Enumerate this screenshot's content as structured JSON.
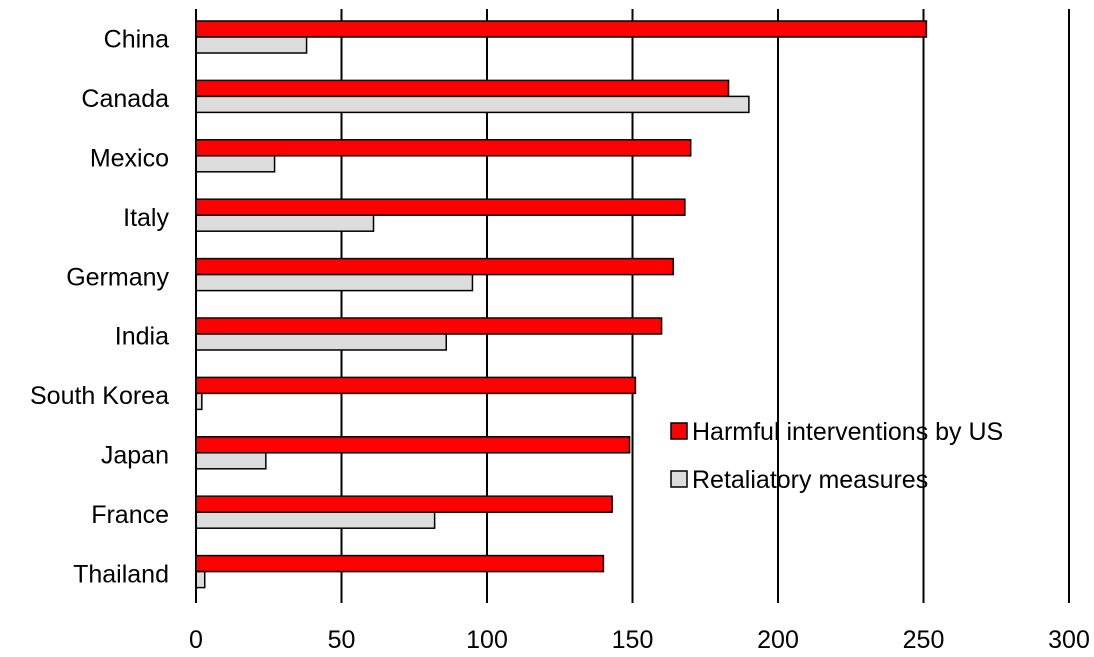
{
  "chart_data": {
    "type": "bar",
    "orientation": "horizontal",
    "title": "",
    "xlabel": "",
    "ylabel": "",
    "categories": [
      "China",
      "Canada",
      "Mexico",
      "Italy",
      "Germany",
      "India",
      "South Korea",
      "Japan",
      "France",
      "Thailand"
    ],
    "series": [
      {
        "name": "Harmful interventions by US",
        "color": "#ff0000",
        "values": [
          251,
          183,
          170,
          168,
          164,
          160,
          151,
          149,
          143,
          140
        ]
      },
      {
        "name": "Retaliatory measures",
        "color": "#dcdcdc",
        "values": [
          38,
          190,
          27,
          61,
          95,
          86,
          2,
          24,
          82,
          3
        ]
      }
    ],
    "xlim": [
      0,
      300
    ],
    "xticks": [
      "0",
      "50",
      "100",
      "150",
      "200",
      "250",
      "300"
    ],
    "grid": "vertical",
    "legend": "bottom-right"
  }
}
